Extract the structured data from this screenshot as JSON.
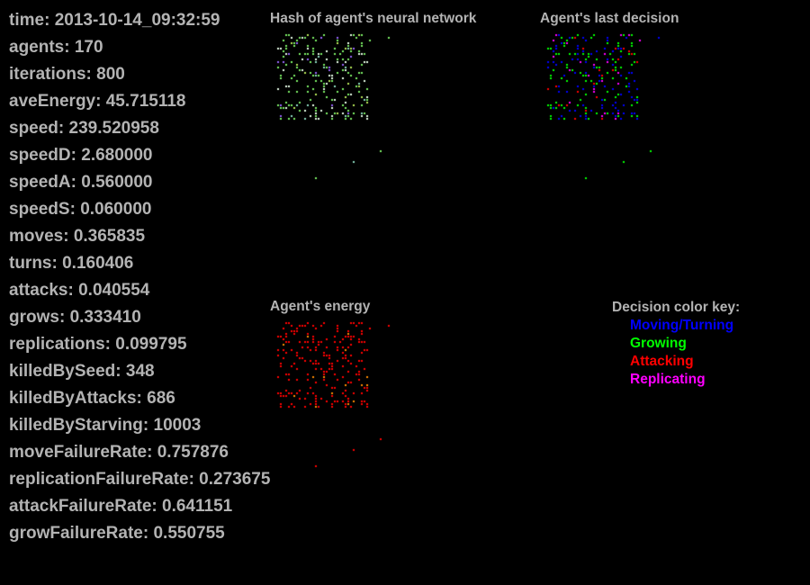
{
  "stats": [
    {
      "label": "time",
      "value": "2013-10-14_09:32:59"
    },
    {
      "label": "agents",
      "value": "170"
    },
    {
      "label": "iterations",
      "value": "800"
    },
    {
      "label": "aveEnergy",
      "value": "45.715118"
    },
    {
      "label": "speed",
      "value": "239.520958"
    },
    {
      "label": "speedD",
      "value": "2.680000"
    },
    {
      "label": "speedA",
      "value": "0.560000"
    },
    {
      "label": "speedS",
      "value": "0.060000"
    },
    {
      "label": "moves",
      "value": "0.365835"
    },
    {
      "label": "turns",
      "value": "0.160406"
    },
    {
      "label": "attacks",
      "value": "0.040554"
    },
    {
      "label": "grows",
      "value": "0.333410"
    },
    {
      "label": "replications",
      "value": "0.099795"
    },
    {
      "label": "killedBySeed",
      "value": "348"
    },
    {
      "label": "killedByAttacks",
      "value": "686"
    },
    {
      "label": "killedByStarving",
      "value": "10003"
    },
    {
      "label": "moveFailureRate",
      "value": "0.757876"
    },
    {
      "label": "replicationFailureRate",
      "value": "0.273675"
    },
    {
      "label": "attackFailureRate",
      "value": "0.641151"
    },
    {
      "label": "growFailureRate",
      "value": "0.550755"
    }
  ],
  "panels": {
    "hash_title": "Hash of agent's neural network",
    "decision_title": "Agent's last decision",
    "energy_title": "Agent's energy"
  },
  "key": {
    "title": "Decision color key:",
    "items": [
      {
        "label": "Moving/Turning",
        "color": "#0000ff"
      },
      {
        "label": "Growing",
        "color": "#00ff00"
      },
      {
        "label": "Attacking",
        "color": "#ff0000"
      },
      {
        "label": "Replicating",
        "color": "#ff00ff"
      }
    ]
  },
  "colors": {
    "text": "#b3b3b3",
    "background": "#000000",
    "energy": "#ff0000",
    "energy_high": "#ff8c00"
  }
}
